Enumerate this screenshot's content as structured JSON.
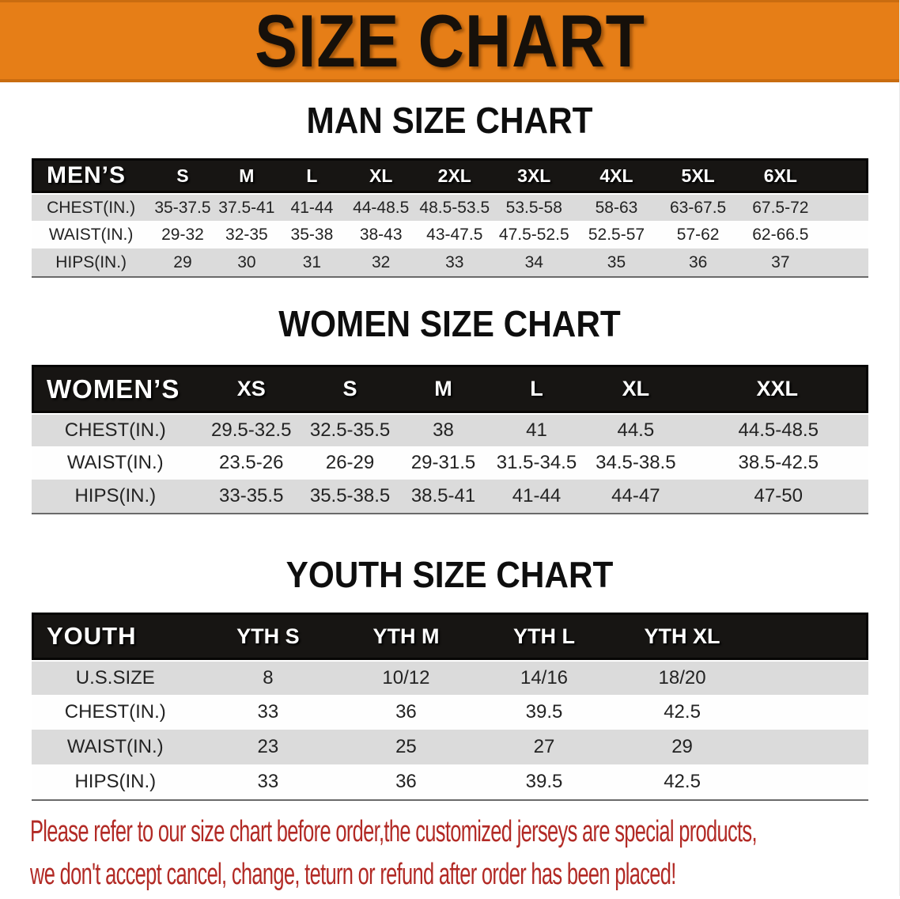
{
  "colors": {
    "banner-bg": "#e67e17",
    "banner-edge": "#c96c10",
    "header-bg": "#171513",
    "stripe": "#dbdbdb",
    "disclaimer": "#b22a25"
  },
  "banner": {
    "title": "SIZE CHART"
  },
  "sections": [
    {
      "heading": "MAN SIZE CHART"
    },
    {
      "heading": "WOMEN SIZE CHART"
    },
    {
      "heading": "YOUTH SIZE CHART"
    }
  ],
  "tables": {
    "men": {
      "label": "MEN’S",
      "columns": [
        "S",
        "M",
        "L",
        "XL",
        "2XL",
        "3XL",
        "4XL",
        "5XL",
        "6XL"
      ],
      "rows": [
        {
          "label": "CHEST(IN.)",
          "values": [
            "35-37.5",
            "37.5-41",
            "41-44",
            "44-48.5",
            "48.5-53.5",
            "53.5-58",
            "58-63",
            "63-67.5",
            "67.5-72"
          ]
        },
        {
          "label": "WAIST(IN.)",
          "values": [
            "29-32",
            "32-35",
            "35-38",
            "38-43",
            "43-47.5",
            "47.5-52.5",
            "52.5-57",
            "57-62",
            "62-66.5"
          ]
        },
        {
          "label": "HIPS(IN.)",
          "values": [
            "29",
            "30",
            "31",
            "32",
            "33",
            "34",
            "35",
            "36",
            "37"
          ]
        }
      ]
    },
    "women": {
      "label": "WOMEN’S",
      "columns": [
        "XS",
        "S",
        "M",
        "L",
        "XL",
        "XXL"
      ],
      "rows": [
        {
          "label": "CHEST(IN.)",
          "values": [
            "29.5-32.5",
            "32.5-35.5",
            "38",
            "41",
            "44.5",
            "44.5-48.5"
          ]
        },
        {
          "label": "WAIST(IN.)",
          "values": [
            "23.5-26",
            "26-29",
            "29-31.5",
            "31.5-34.5",
            "34.5-38.5",
            "38.5-42.5"
          ]
        },
        {
          "label": "HIPS(IN.)",
          "values": [
            "33-35.5",
            "35.5-38.5",
            "38.5-41",
            "41-44",
            "44-47",
            "47-50"
          ]
        }
      ]
    },
    "youth": {
      "label": "YOUTH",
      "columns": [
        "YTH S",
        "YTH M",
        "YTH L",
        "YTH XL"
      ],
      "rows": [
        {
          "label": "U.S.SIZE",
          "values": [
            "8",
            "10/12",
            "14/16",
            "18/20"
          ]
        },
        {
          "label": "CHEST(IN.)",
          "values": [
            "33",
            "36",
            "39.5",
            "42.5"
          ]
        },
        {
          "label": "WAIST(IN.)",
          "values": [
            "23",
            "25",
            "27",
            "29"
          ]
        },
        {
          "label": "HIPS(IN.)",
          "values": [
            "33",
            "36",
            "39.5",
            "42.5"
          ]
        }
      ]
    }
  },
  "disclaimer": {
    "line1": "Please refer to our size chart before order,the customized jerseys are special products,",
    "line2": "we don't accept cancel, change, teturn or refund after order has been placed!"
  }
}
